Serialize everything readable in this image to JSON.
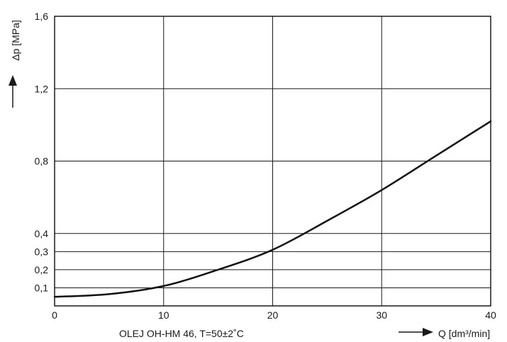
{
  "chart_data": {
    "type": "line",
    "title": "",
    "caption": "OLEJ OH-HM 46, T=50±2˚C",
    "ylabel": "Δp [MPa]",
    "xlabel": "Q [dm³/min]",
    "xlim": [
      0,
      40
    ],
    "ylim": [
      0,
      1.6
    ],
    "x_ticks": [
      0,
      10,
      20,
      30,
      40
    ],
    "x_tick_labels": [
      "0",
      "10",
      "20",
      "30",
      "40"
    ],
    "y_ticks": [
      0.1,
      0.2,
      0.3,
      0.4,
      0.8,
      1.2,
      1.6
    ],
    "y_tick_labels": [
      "0,1",
      "0,2",
      "0,3",
      "0,4",
      "0,8",
      "1,2",
      "1,6"
    ],
    "grid": true,
    "series": [
      {
        "x": [
          0,
          5,
          10,
          15,
          20,
          25,
          30,
          35,
          40
        ],
        "y": [
          0.05,
          0.065,
          0.11,
          0.2,
          0.31,
          0.47,
          0.64,
          0.83,
          1.02
        ]
      }
    ]
  }
}
